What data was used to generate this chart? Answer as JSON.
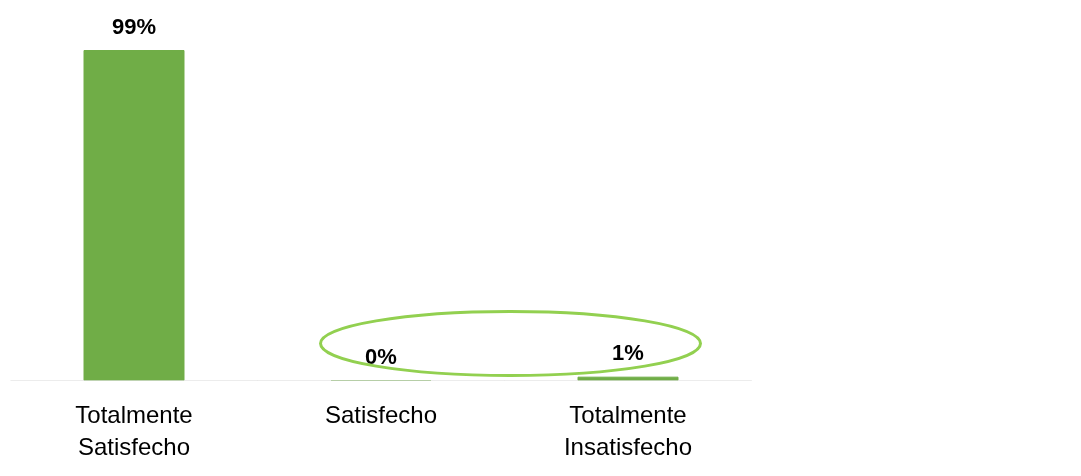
{
  "chart_data": {
    "type": "bar",
    "categories": [
      "Totalmente Satisfecho",
      "Satisfecho",
      "Totalmente Insatisfecho"
    ],
    "values": [
      99,
      0,
      1
    ],
    "color": "#70ad47",
    "value_labels": [
      "99%",
      "0%",
      "1%"
    ],
    "grid": false
  }
}
